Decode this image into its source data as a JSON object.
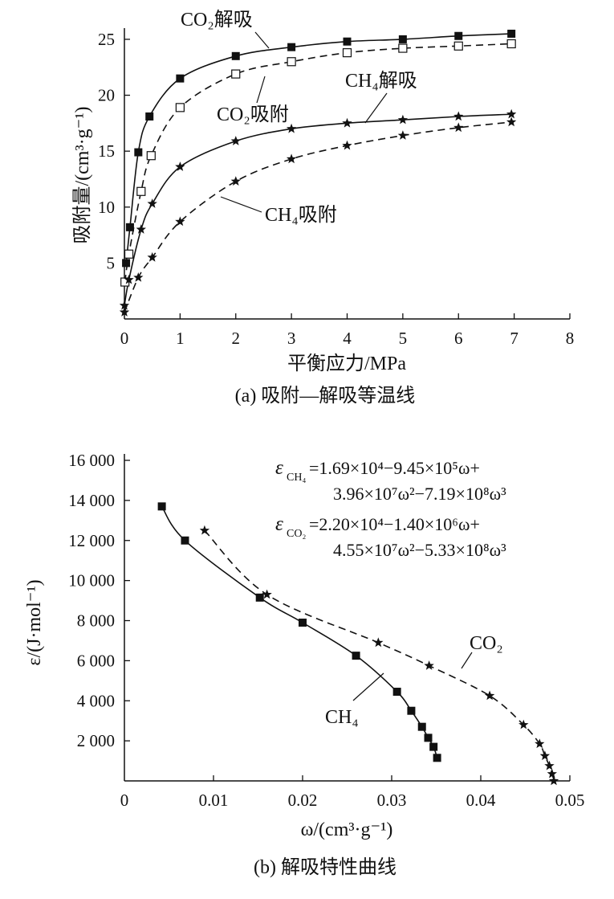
{
  "chart_data": [
    {
      "type": "line",
      "caption": "(a) 吸附—解吸等温线",
      "xlabel": "平衡应力/MPa",
      "ylabel": "吸附量/(cm³·g⁻¹)",
      "xlim": [
        0,
        8
      ],
      "ylim": [
        0,
        26
      ],
      "xticks": [
        "0",
        "1",
        "2",
        "3",
        "4",
        "5",
        "6",
        "7",
        "8"
      ],
      "yticks": [
        "5",
        "10",
        "15",
        "20",
        "25"
      ],
      "series": [
        {
          "name": "CO₂解吸",
          "marker": "filled-square",
          "line": "solid",
          "x": [
            0.03,
            0.1,
            0.25,
            0.45,
            1.0,
            2.0,
            3.0,
            4.0,
            5.0,
            6.0,
            6.95
          ],
          "y": [
            5.0,
            8.2,
            14.9,
            18.1,
            21.5,
            23.5,
            24.3,
            24.8,
            25.0,
            25.3,
            25.5
          ]
        },
        {
          "name": "CO₂吸附",
          "marker": "open-square",
          "line": "dashed",
          "x": [
            0.01,
            0.08,
            0.3,
            0.48,
            1.0,
            2.0,
            3.0,
            4.0,
            5.0,
            6.0,
            6.95
          ],
          "y": [
            3.3,
            5.8,
            11.4,
            14.6,
            18.9,
            21.9,
            23.0,
            23.8,
            24.2,
            24.4,
            24.6
          ]
        },
        {
          "name": "CH₄解吸",
          "marker": "star",
          "line": "solid",
          "x": [
            0.0,
            0.08,
            0.3,
            0.5,
            1.0,
            2.0,
            3.0,
            4.0,
            5.0,
            6.0,
            6.95
          ],
          "y": [
            1.2,
            3.5,
            8.0,
            10.3,
            13.6,
            15.9,
            17.0,
            17.5,
            17.8,
            18.1,
            18.3
          ]
        },
        {
          "name": "CH₄吸附",
          "marker": "star",
          "line": "dashed",
          "x": [
            0.0,
            0.25,
            0.5,
            1.0,
            2.0,
            3.0,
            4.0,
            5.0,
            6.0,
            6.95
          ],
          "y": [
            0.6,
            3.7,
            5.5,
            8.7,
            12.3,
            14.3,
            15.5,
            16.4,
            17.1,
            17.6
          ]
        }
      ]
    },
    {
      "type": "line",
      "caption": "(b) 解吸特性曲线",
      "xlabel": "ω/(cm³·g⁻¹)",
      "ylabel": "ε/(J·mol⁻¹)",
      "xlim": [
        0,
        0.05
      ],
      "ylim": [
        0,
        16000
      ],
      "xticks": [
        "0",
        "0.01",
        "0.02",
        "0.03",
        "0.04",
        "0.05"
      ],
      "yticks": [
        "2 000",
        "4 000",
        "6 000",
        "8 000",
        "10 000",
        "12 000",
        "14 000",
        "16 000"
      ],
      "equations": [
        {
          "lhs": "ε",
          "sub": "CH₄",
          "line1": "=1.69×10⁴−9.45×10⁵ω+",
          "line2": "3.96×10⁷ω²−7.19×10⁸ω³"
        },
        {
          "lhs": "ε",
          "sub": "CO₂",
          "line1": "=2.20×10⁴−1.40×10⁶ω+",
          "line2": "4.55×10⁷ω²−5.33×10⁸ω³"
        }
      ],
      "series": [
        {
          "name": "CH₄",
          "marker": "filled-square",
          "line": "solid",
          "x": [
            0.0042,
            0.0068,
            0.0152,
            0.02,
            0.026,
            0.0306,
            0.0322,
            0.0334,
            0.0341,
            0.0347,
            0.0351
          ],
          "y": [
            13700,
            12000,
            9150,
            7900,
            6250,
            4450,
            3500,
            2700,
            2150,
            1700,
            1150
          ]
        },
        {
          "name": "CO₂",
          "marker": "star",
          "line": "dashed",
          "x": [
            0.009,
            0.016,
            0.0285,
            0.0342,
            0.041,
            0.0448,
            0.0466,
            0.0472,
            0.0477,
            0.048,
            0.0482
          ],
          "y": [
            12500,
            9300,
            6900,
            5750,
            4250,
            2800,
            1850,
            1250,
            750,
            350,
            0
          ]
        }
      ]
    }
  ]
}
